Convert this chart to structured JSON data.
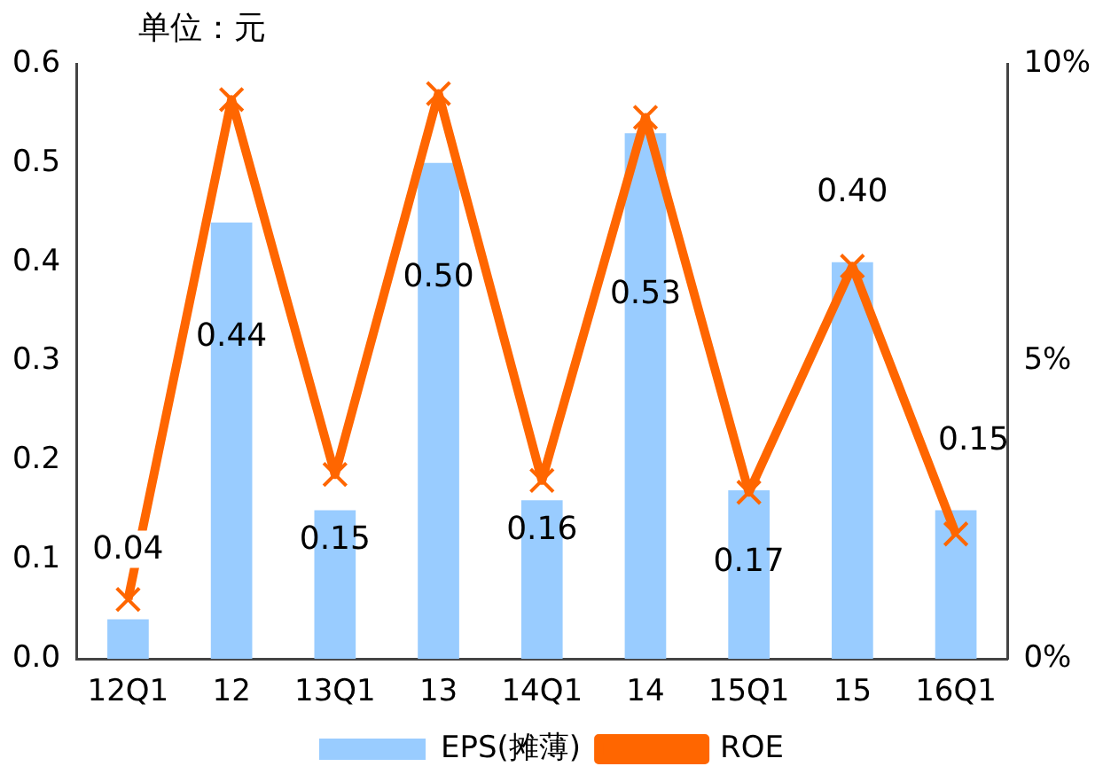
{
  "chart_data": {
    "type": "bar",
    "annotations": [
      "单位：元"
    ],
    "categories": [
      "12Q1",
      "12",
      "13Q1",
      "13",
      "14Q1",
      "14",
      "15Q1",
      "15",
      "16Q1"
    ],
    "series": [
      {
        "name": "EPS(摊薄)",
        "color": "#99ccff",
        "values": [
          0.04,
          0.44,
          0.15,
          0.5,
          0.16,
          0.53,
          0.17,
          0.4,
          0.15
        ],
        "value_labels": [
          "0.04",
          "0.44",
          "0.15",
          "0.50",
          "0.16",
          "0.53",
          "0.17",
          "0.40",
          "0.15"
        ]
      },
      {
        "name": "ROE",
        "type": "line",
        "axis": "y2",
        "color": "#ff6600",
        "marker": "cross",
        "values": [
          1.0,
          9.4,
          3.1,
          9.5,
          3.0,
          9.1,
          2.8,
          6.6,
          2.1
        ]
      }
    ],
    "ylim": [
      0,
      0.6
    ],
    "yticks": [
      {
        "value": 0,
        "label": "0.0"
      },
      0.1,
      0.2,
      0.3,
      0.4,
      0.5,
      0.6
    ],
    "y2lim": [
      0,
      10
    ],
    "y2ticks": [
      {
        "value": 0,
        "label": "0%"
      },
      {
        "value": 5,
        "label": "5%"
      },
      {
        "value": 10,
        "label": "10%"
      }
    ],
    "grid": false,
    "legend": "bottom"
  }
}
